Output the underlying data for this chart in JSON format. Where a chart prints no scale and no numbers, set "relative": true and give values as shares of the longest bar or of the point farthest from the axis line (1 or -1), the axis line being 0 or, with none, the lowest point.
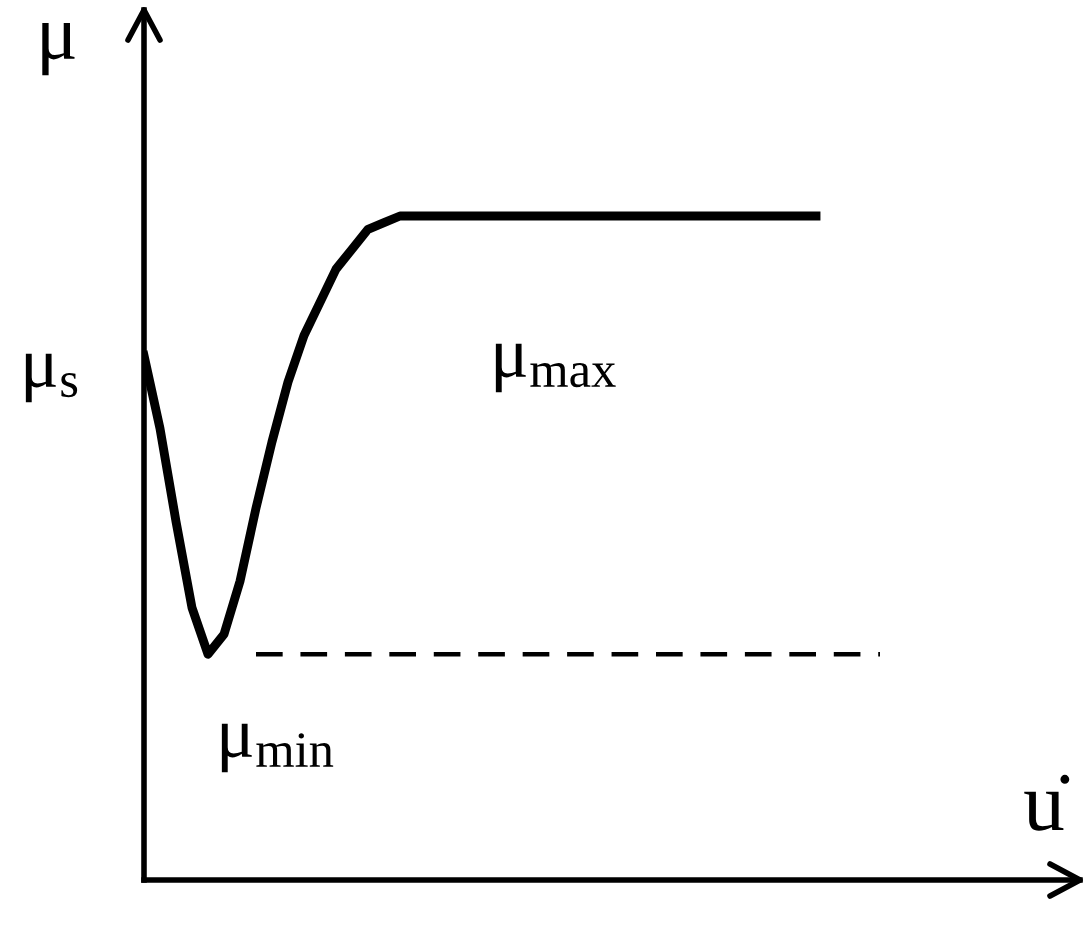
{
  "chart_data": {
    "type": "line",
    "relative": true,
    "xlabel": "u̇",
    "ylabel": "μ",
    "categories": [
      null,
      null,
      null,
      null,
      null,
      null,
      null,
      null,
      null,
      null,
      null,
      null,
      null,
      null,
      null,
      null,
      null,
      null,
      null,
      null,
      null,
      null,
      null,
      null,
      null,
      null,
      null,
      null,
      null,
      null,
      null,
      null,
      null,
      null,
      null,
      null,
      null,
      null,
      null,
      null,
      null,
      null,
      null,
      null,
      null,
      null,
      null
    ],
    "series": [
      {
        "color": "#000000",
        "line_style": "solid",
        "values": [
          0.79,
          0.68,
          0.54,
          0.41,
          0.34,
          0.37,
          0.45,
          0.56,
          0.66,
          0.75,
          0.82,
          0.87,
          0.92,
          0.95,
          0.98,
          0.99,
          1,
          1,
          1,
          1,
          1,
          1,
          1,
          1,
          1,
          1,
          1,
          1,
          1,
          1,
          1,
          1,
          1,
          1,
          1,
          1,
          1,
          1,
          1,
          1,
          1,
          1,
          1,
          null,
          null,
          null,
          null
        ]
      },
      {
        "color": "#000000",
        "line_style": "dashed",
        "values": [
          null,
          null,
          null,
          null,
          null,
          null,
          null,
          0.34,
          0.34,
          0.34,
          0.34,
          0.34,
          0.34,
          0.34,
          0.34,
          0.34,
          0.34,
          0.34,
          0.34,
          0.34,
          0.34,
          0.34,
          0.34,
          0.34,
          0.34,
          0.34,
          0.34,
          0.34,
          0.34,
          0.34,
          0.34,
          0.34,
          0.34,
          0.34,
          0.34,
          0.34,
          0.34,
          0.34,
          0.34,
          0.34,
          0.34,
          0.34,
          0.34,
          0.34,
          0.34,
          0.34,
          0.34
        ]
      }
    ],
    "annotations": [
      "μ$_{s}$",
      "μ$_{max}$",
      "μ$_{min}$"
    ],
    "marker": "none"
  }
}
